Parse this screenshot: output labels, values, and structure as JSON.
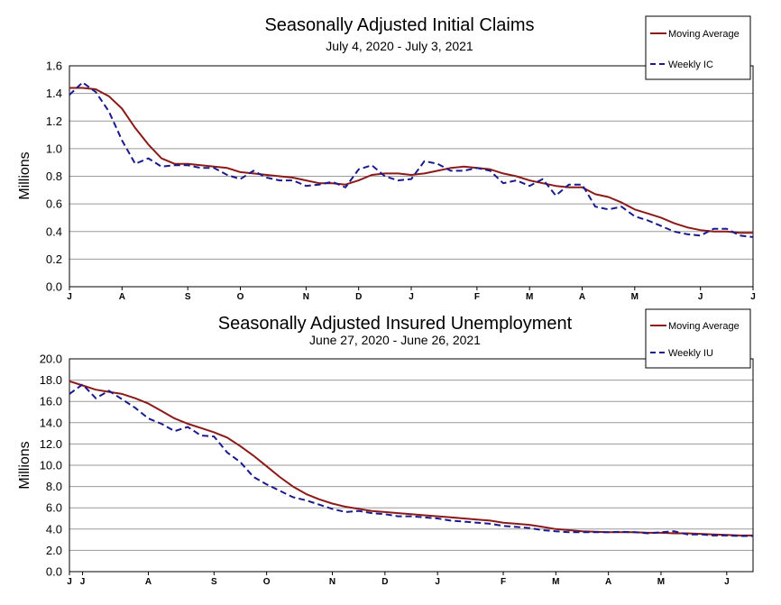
{
  "chart_data": [
    {
      "type": "line",
      "title": "Seasonally Adjusted Initial Claims",
      "subtitle": "July 4, 2020 - July 3, 2021",
      "ylabel": "Millions",
      "xlabel": "",
      "ylim": [
        0,
        1.6
      ],
      "yticks": [
        "0.0",
        "0.2",
        "0.4",
        "0.6",
        "0.8",
        "1.0",
        "1.2",
        "1.4",
        "1.6"
      ],
      "ytick_values": [
        0,
        0.2,
        0.4,
        0.6,
        0.8,
        1.0,
        1.2,
        1.4,
        1.6
      ],
      "xticks": [
        {
          "label": "J",
          "week": 0
        },
        {
          "label": "A",
          "week": 4
        },
        {
          "label": "S",
          "week": 9
        },
        {
          "label": "O",
          "week": 13
        },
        {
          "label": "N",
          "week": 18
        },
        {
          "label": "D",
          "week": 22
        },
        {
          "label": "J",
          "week": 26
        },
        {
          "label": "F",
          "week": 31
        },
        {
          "label": "M",
          "week": 35
        },
        {
          "label": "A",
          "week": 39
        },
        {
          "label": "M",
          "week": 43
        },
        {
          "label": "J",
          "week": 48
        },
        {
          "label": "J",
          "week": 52
        }
      ],
      "grid": true,
      "legend_position": "top-right",
      "series": [
        {
          "name": "Moving Average",
          "color": "#8b1a1a",
          "style": "solid",
          "values": [
            1.44,
            1.44,
            1.43,
            1.38,
            1.29,
            1.15,
            1.03,
            0.93,
            0.89,
            0.89,
            0.88,
            0.87,
            0.86,
            0.83,
            0.82,
            0.81,
            0.8,
            0.79,
            0.77,
            0.75,
            0.75,
            0.74,
            0.77,
            0.81,
            0.82,
            0.82,
            0.81,
            0.82,
            0.84,
            0.86,
            0.87,
            0.86,
            0.85,
            0.82,
            0.8,
            0.77,
            0.75,
            0.73,
            0.72,
            0.72,
            0.67,
            0.65,
            0.61,
            0.56,
            0.53,
            0.5,
            0.46,
            0.43,
            0.41,
            0.4,
            0.4,
            0.39,
            0.39
          ]
        },
        {
          "name": "Weekly IC",
          "color": "#1a1a8c",
          "style": "dashed",
          "values": [
            1.39,
            1.48,
            1.41,
            1.27,
            1.06,
            0.89,
            0.93,
            0.87,
            0.88,
            0.88,
            0.86,
            0.86,
            0.81,
            0.78,
            0.84,
            0.79,
            0.77,
            0.77,
            0.73,
            0.74,
            0.76,
            0.72,
            0.85,
            0.88,
            0.8,
            0.77,
            0.78,
            0.91,
            0.89,
            0.84,
            0.84,
            0.86,
            0.84,
            0.75,
            0.77,
            0.73,
            0.78,
            0.66,
            0.74,
            0.74,
            0.58,
            0.56,
            0.58,
            0.51,
            0.48,
            0.44,
            0.4,
            0.38,
            0.37,
            0.42,
            0.42,
            0.37,
            0.36
          ]
        }
      ]
    },
    {
      "type": "line",
      "title": "Seasonally Adjusted Insured Unemployment",
      "subtitle": "June 27, 2020 - June 26, 2021",
      "ylabel": "Millions",
      "xlabel": "",
      "ylim": [
        0,
        20
      ],
      "yticks": [
        "0.0",
        "2.0",
        "4.0",
        "6.0",
        "8.0",
        "10.0",
        "12.0",
        "14.0",
        "16.0",
        "18.0",
        "20.0"
      ],
      "ytick_values": [
        0,
        2,
        4,
        6,
        8,
        10,
        12,
        14,
        16,
        18,
        20
      ],
      "xticks": [
        {
          "label": "J",
          "week": 0
        },
        {
          "label": "J",
          "week": 1
        },
        {
          "label": "A",
          "week": 6
        },
        {
          "label": "S",
          "week": 11
        },
        {
          "label": "O",
          "week": 15
        },
        {
          "label": "N",
          "week": 20
        },
        {
          "label": "D",
          "week": 24
        },
        {
          "label": "J",
          "week": 28
        },
        {
          "label": "F",
          "week": 33
        },
        {
          "label": "M",
          "week": 37
        },
        {
          "label": "A",
          "week": 41
        },
        {
          "label": "M",
          "week": 45
        },
        {
          "label": "J",
          "week": 50
        }
      ],
      "grid": true,
      "legend_position": "top-right",
      "series": [
        {
          "name": "Moving Average",
          "color": "#8b1a1a",
          "style": "solid",
          "values": [
            17.9,
            17.5,
            17.1,
            16.9,
            16.7,
            16.3,
            15.8,
            15.1,
            14.4,
            13.9,
            13.5,
            13.1,
            12.6,
            11.8,
            10.9,
            9.9,
            8.9,
            8.0,
            7.3,
            6.8,
            6.4,
            6.1,
            5.9,
            5.7,
            5.6,
            5.5,
            5.4,
            5.3,
            5.2,
            5.1,
            5.0,
            4.9,
            4.8,
            4.6,
            4.5,
            4.4,
            4.2,
            4.0,
            3.9,
            3.8,
            3.75,
            3.7,
            3.7,
            3.7,
            3.65,
            3.65,
            3.6,
            3.6,
            3.55,
            3.5,
            3.45,
            3.4,
            3.4
          ]
        },
        {
          "name": "Weekly IU",
          "color": "#1a1a8c",
          "style": "dashed",
          "values": [
            16.7,
            17.6,
            16.3,
            17.0,
            16.2,
            15.4,
            14.4,
            13.9,
            13.2,
            13.6,
            12.8,
            12.7,
            11.2,
            10.3,
            8.9,
            8.2,
            7.6,
            7.0,
            6.7,
            6.3,
            5.9,
            5.6,
            5.7,
            5.5,
            5.4,
            5.2,
            5.2,
            5.1,
            5.0,
            4.8,
            4.7,
            4.6,
            4.5,
            4.3,
            4.2,
            4.1,
            3.9,
            3.8,
            3.7,
            3.7,
            3.7,
            3.7,
            3.75,
            3.7,
            3.6,
            3.7,
            3.8,
            3.5,
            3.5,
            3.4,
            3.4,
            3.35,
            3.35
          ]
        }
      ]
    }
  ]
}
